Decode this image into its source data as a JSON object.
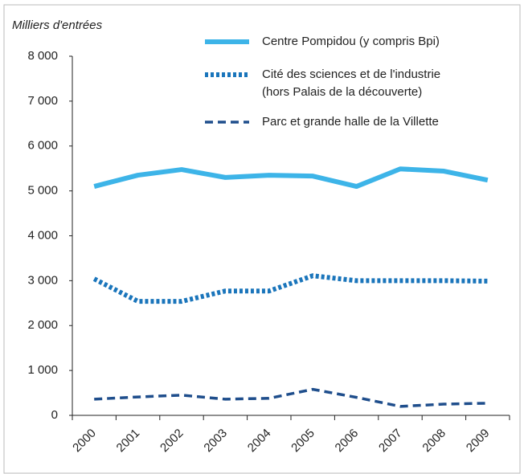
{
  "chart_data": {
    "type": "line",
    "y_label": "Milliers d'entrées",
    "categories": [
      "2000",
      "2001",
      "2002",
      "2003",
      "2004",
      "2005",
      "2006",
      "2007",
      "2008",
      "2009"
    ],
    "ylim": [
      0,
      8000
    ],
    "yticks": [
      0,
      {
        "value": 1000,
        "label": "1 000"
      },
      {
        "value": 2000,
        "label": "2 000"
      },
      {
        "value": 3000,
        "label": "3 000"
      },
      {
        "value": 4000,
        "label": "4 000"
      },
      {
        "value": 5000,
        "label": "5 000"
      },
      {
        "value": 6000,
        "label": "6 000"
      },
      {
        "value": 7000,
        "label": "7 000"
      },
      {
        "value": 8000,
        "label": "8 000"
      }
    ],
    "series": [
      {
        "name": "Centre Pompidou (y compris Bpi)",
        "color": "#3db4e8",
        "style": "solid",
        "values": [
          5100,
          5350,
          5475,
          5300,
          5350,
          5330,
          5100,
          5490,
          5440,
          5240
        ]
      },
      {
        "name": "Cité des sciences et de l'industrie\n(hors Palais de la découverte)",
        "color": "#1a75bb",
        "style": "dotted",
        "values": [
          3040,
          2540,
          2540,
          2770,
          2770,
          3110,
          3000,
          3000,
          3000,
          2990
        ]
      },
      {
        "name": "Parc et grande halle de la Villette",
        "color": "#1f4e8c",
        "style": "dashed",
        "values": [
          360,
          410,
          450,
          360,
          380,
          580,
          400,
          200,
          250,
          270
        ]
      }
    ]
  }
}
